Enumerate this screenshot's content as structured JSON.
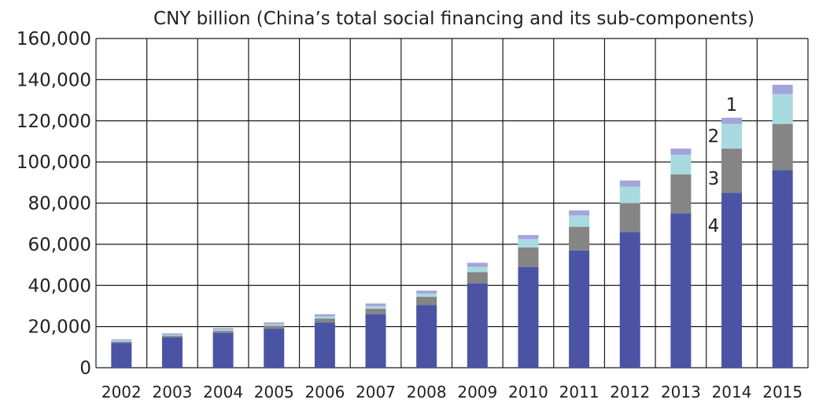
{
  "chart_data": {
    "type": "bar",
    "stacked": true,
    "title": "CNY billion (China’s total social financing and its sub-components)",
    "categories": [
      "2002",
      "2003",
      "2004",
      "2005",
      "2006",
      "2007",
      "2008",
      "2009",
      "2010",
      "2011",
      "2012",
      "2013",
      "2014",
      "2015"
    ],
    "y_ticks": [
      "0",
      "20,000",
      "40,000",
      "60,000",
      "80,000",
      "100,000",
      "120,000",
      "140,000",
      "160,000"
    ],
    "ylim": [
      0,
      160000
    ],
    "grid": true,
    "series": [
      {
        "name": "4",
        "color": "#4b54a4",
        "values": [
          12000,
          14700,
          16800,
          18900,
          22000,
          26000,
          30500,
          41000,
          49000,
          57000,
          66000,
          75000,
          85000,
          96000
        ]
      },
      {
        "name": "3",
        "color": "#858585",
        "values": [
          600,
          800,
          1100,
          1500,
          1900,
          2700,
          4000,
          5500,
          9500,
          11500,
          14000,
          19000,
          21500,
          22500
        ]
      },
      {
        "name": "2",
        "color": "#a8dbe0",
        "values": [
          600,
          500,
          600,
          700,
          1000,
          1200,
          1500,
          2500,
          4000,
          5500,
          8000,
          9500,
          12000,
          14500
        ]
      },
      {
        "name": "1",
        "color": "#a4a4dc",
        "values": [
          600,
          700,
          800,
          900,
          1100,
          1300,
          1500,
          2000,
          2000,
          2500,
          3000,
          3000,
          3000,
          4500
        ]
      }
    ],
    "component_labels": [
      "1",
      "2",
      "3",
      "4"
    ],
    "colors": {
      "grid": "#1a1a1a",
      "text": "#222222",
      "background": "#ffffff"
    }
  }
}
